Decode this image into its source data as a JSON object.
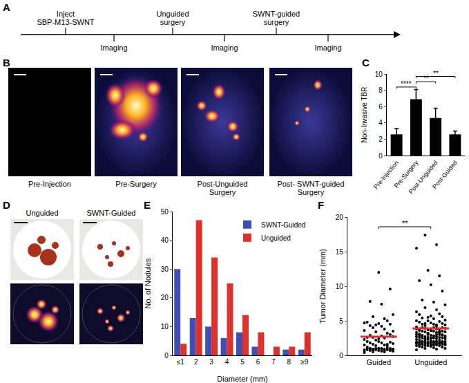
{
  "panel_a": {
    "panel_label": "A",
    "events_above": [
      [
        "Inject",
        "SBP-M13-SWNT"
      ],
      [
        "Unguided",
        "surgery"
      ],
      [
        "SWNT-guided",
        "surgery"
      ]
    ],
    "events_below": [
      [
        "Imaging"
      ],
      [
        "Imaging"
      ],
      [
        "Imaging"
      ]
    ]
  },
  "panel_b": {
    "panel_label": "B",
    "images": [
      [
        "Pre-Injection"
      ],
      [
        "Pre-Surgery"
      ],
      [
        "Post-Unguided",
        "Surgery"
      ],
      [
        "Post- SWNT-guided",
        "Surgery"
      ]
    ]
  },
  "panel_d": {
    "panel_label": "D",
    "images": [
      "Unguided",
      "SWNT-Guided"
    ]
  },
  "chart_data": [
    {
      "panel_label": "C",
      "type": "bar",
      "categories": [
        "Pre-Injection",
        "Pre-Surgery",
        "Post-Unguided",
        "Post-Guided"
      ],
      "values": [
        2.6,
        6.9,
        4.6,
        2.6
      ],
      "errors": [
        0.7,
        1.2,
        1.2,
        0.4
      ],
      "color": "#000000",
      "y_label": "Non-Invasive TBR",
      "ylim": [
        0,
        10
      ],
      "yticks": [
        0,
        2,
        4,
        6,
        8,
        10
      ],
      "annotations": [
        {
          "from": 0,
          "to": 1,
          "text": "****"
        },
        {
          "from": 1,
          "to": 2,
          "text": "**"
        },
        {
          "from": 1,
          "to": 3,
          "text": "**"
        }
      ]
    },
    {
      "panel_label": "E",
      "type": "bar",
      "categories": [
        "≤1",
        "2",
        "3",
        "4",
        "5",
        "6",
        "7",
        "8",
        "≥9"
      ],
      "series": [
        {
          "name": "SWNT-Guided",
          "color": "#3f4fb5",
          "values": [
            30,
            13,
            10,
            6,
            8,
            3,
            0,
            2,
            2
          ]
        },
        {
          "name": "Unguided",
          "color": "#e0302a",
          "values": [
            4,
            47,
            34,
            25,
            14,
            8,
            3,
            3,
            8
          ]
        }
      ],
      "x_label": "Diameter (mm)",
      "y_label": "No. of Nodules",
      "ylim": [
        0,
        50
      ],
      "yticks": [
        0,
        10,
        20,
        30,
        40,
        50
      ],
      "legend": "top-right"
    },
    {
      "panel_label": "F",
      "type": "scatter",
      "categories": [
        "Guided",
        "Unguided"
      ],
      "points": [
        [
          0.4,
          0.5,
          0.5,
          0.6,
          0.6,
          0.7,
          0.7,
          0.7,
          0.8,
          0.8,
          0.8,
          0.8,
          0.9,
          0.9,
          0.9,
          0.9,
          1.0,
          1.0,
          1.0,
          1.0,
          1.0,
          1.0,
          0.6,
          0.7,
          0.8,
          0.9,
          1.0,
          0.9,
          0.8,
          1.0,
          1.2,
          1.3,
          1.4,
          1.5,
          1.5,
          1.6,
          1.7,
          1.8,
          1.8,
          1.9,
          2.0,
          2.0,
          1.6,
          2.2,
          2.3,
          2.5,
          2.6,
          2.7,
          2.8,
          2.9,
          3.0,
          2.4,
          2.6,
          3.2,
          3.4,
          3.6,
          3.8,
          4.0,
          3.5,
          4.2,
          4.3,
          4.5,
          4.6,
          4.8,
          5.0,
          4.4,
          4.7,
          5.3,
          5.6,
          5.9,
          7.4,
          7.8,
          9.6,
          12.0
        ],
        [
          0.8,
          0.9,
          1.0,
          1.0,
          1.1,
          1.2,
          1.2,
          1.3,
          1.3,
          1.4,
          1.4,
          1.4,
          1.5,
          1.5,
          1.5,
          1.5,
          1.6,
          1.6,
          1.6,
          1.6,
          1.7,
          1.7,
          1.7,
          1.7,
          1.8,
          1.8,
          1.8,
          1.8,
          1.8,
          1.9,
          1.9,
          1.9,
          1.9,
          1.9,
          2.0,
          2.0,
          2.0,
          2.0,
          2.0,
          2.0,
          1.5,
          1.6,
          1.7,
          1.8,
          1.9,
          2.0,
          1.4,
          1.6,
          1.8,
          2.0,
          1.9,
          2.1,
          2.2,
          2.2,
          2.3,
          2.3,
          2.4,
          2.4,
          2.4,
          2.5,
          2.5,
          2.5,
          2.5,
          2.6,
          2.6,
          2.6,
          2.7,
          2.7,
          2.7,
          2.8,
          2.8,
          2.8,
          2.9,
          2.9,
          2.9,
          3.0,
          3.0,
          3.0,
          3.0,
          2.3,
          2.6,
          2.8,
          2.9,
          3.0,
          2.5,
          3.1,
          3.2,
          3.2,
          3.3,
          3.3,
          3.4,
          3.4,
          3.5,
          3.5,
          3.5,
          3.6,
          3.6,
          3.7,
          3.7,
          3.8,
          3.8,
          3.9,
          3.9,
          4.0,
          4.0,
          4.0,
          3.6,
          3.8,
          3.4,
          3.2,
          4.1,
          4.2,
          4.3,
          4.4,
          4.5,
          4.5,
          4.6,
          4.7,
          4.8,
          4.9,
          5.0,
          5.0,
          4.4,
          4.6,
          5.1,
          5.3,
          5.4,
          5.6,
          5.7,
          5.9,
          6.0,
          5.5,
          6.3,
          6.6,
          6.9,
          7.3,
          7.7,
          8.0,
          9.3,
          10.2,
          10.8,
          11.5,
          12.3,
          15.5,
          16.0,
          17.4
        ]
      ],
      "means": [
        2.7,
        3.9
      ],
      "color": "#000000",
      "y_label": "Tumor Diameter (mm)",
      "ylim": [
        0,
        20
      ],
      "yticks": [
        0,
        5,
        10,
        15,
        20
      ],
      "annotations": [
        {
          "from": 0,
          "to": 1,
          "text": "**"
        }
      ]
    }
  ]
}
